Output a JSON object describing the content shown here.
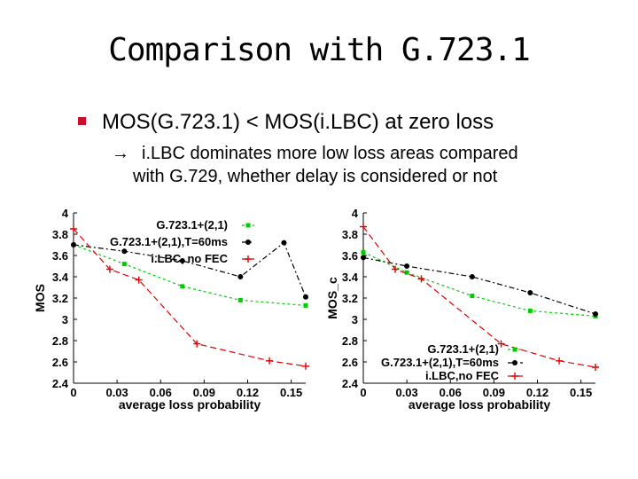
{
  "slide": {
    "title": "Comparison with G.723.1",
    "bullet": "MOS(G.723.1) < MOS(i.LBC) at zero loss",
    "sub_arrow": "→",
    "sub_line1": "i.LBC dominates more low loss areas compared",
    "sub_line2": "with G.729, whether delay is considered or not"
  },
  "colors": {
    "bullet_square": "#c8102e",
    "black": "#000000",
    "green": "#00cc00",
    "red": "#e00000"
  },
  "chart_data": [
    {
      "type": "line",
      "xlabel": "average loss probability",
      "ylabel": "MOS",
      "xlim": [
        0,
        0.16
      ],
      "ylim": [
        2.4,
        4
      ],
      "xticks": [
        "0",
        "0.03",
        "0.06",
        "0.09",
        "0.12",
        "0.15"
      ],
      "yticks": [
        "2.4",
        "2.6",
        "2.8",
        "3",
        "3.2",
        "3.4",
        "3.6",
        "3.8",
        "4"
      ],
      "legend_position": "top-right",
      "series": [
        {
          "name": "G.723.1+(2,1)",
          "color": "#00cc00",
          "marker": "square",
          "x": [
            0,
            0.035,
            0.075,
            0.115,
            0.16
          ],
          "y": [
            3.7,
            3.52,
            3.31,
            3.18,
            3.13
          ]
        },
        {
          "name": "G.723.1+(2,1),T=60ms",
          "color": "#000000",
          "marker": "circle",
          "x": [
            0,
            0.035,
            0.075,
            0.115,
            0.145,
            0.16
          ],
          "y": [
            3.7,
            3.64,
            3.55,
            3.4,
            3.72,
            3.21
          ]
        },
        {
          "name": "i.LBC, no FEC",
          "color": "#e00000",
          "marker": "plus",
          "x": [
            0,
            0.025,
            0.045,
            0.085,
            0.135,
            0.16
          ],
          "y": [
            3.85,
            3.47,
            3.37,
            2.77,
            2.61,
            2.56
          ]
        }
      ]
    },
    {
      "type": "line",
      "xlabel": "average loss probability",
      "ylabel": "MOS_c",
      "xlim": [
        0,
        0.16
      ],
      "ylim": [
        2.4,
        4
      ],
      "xticks": [
        "0",
        "0.03",
        "0.06",
        "0.09",
        "0.12",
        "0.15"
      ],
      "yticks": [
        "2.4",
        "2.6",
        "2.8",
        "3",
        "3.2",
        "3.4",
        "3.6",
        "3.8",
        "4"
      ],
      "legend_position": "bottom-right",
      "series": [
        {
          "name": "G.723.1+(2,1)",
          "color": "#00cc00",
          "marker": "square",
          "x": [
            0,
            0.03,
            0.075,
            0.115,
            0.16
          ],
          "y": [
            3.63,
            3.44,
            3.22,
            3.08,
            3.03
          ]
        },
        {
          "name": "G.723.1+(2,1),T=60ms",
          "color": "#000000",
          "marker": "circle",
          "x": [
            0,
            0.03,
            0.075,
            0.115,
            0.16
          ],
          "y": [
            3.58,
            3.5,
            3.4,
            3.25,
            3.05
          ]
        },
        {
          "name": "i.LBC,no FEC",
          "color": "#e00000",
          "marker": "plus",
          "x": [
            0,
            0.022,
            0.04,
            0.095,
            0.135,
            0.16
          ],
          "y": [
            3.87,
            3.47,
            3.38,
            2.77,
            2.61,
            2.55
          ]
        }
      ]
    }
  ]
}
